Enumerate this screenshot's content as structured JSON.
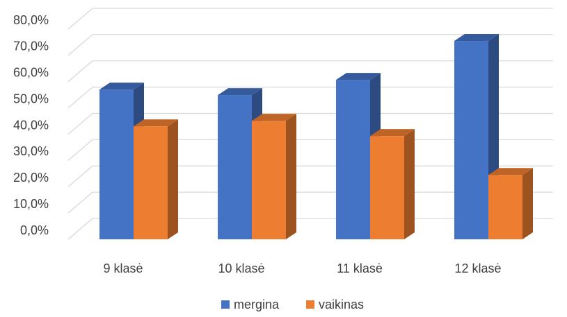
{
  "chart_data": {
    "type": "bar",
    "style": "3d-clustered-column",
    "categories": [
      "9 klasė",
      "10 klasė",
      "11 klasė",
      "12 klasė"
    ],
    "series": [
      {
        "name": "mergina",
        "values": [
          57.0,
          54.9,
          60.7,
          75.5
        ],
        "color": "#4472C4"
      },
      {
        "name": "vaikinas",
        "values": [
          43.0,
          45.1,
          39.3,
          24.5
        ],
        "color": "#ED7D31"
      }
    ],
    "y_ticks": [
      "0,0%",
      "10,0%",
      "20,0%",
      "30,0%",
      "40,0%",
      "50,0%",
      "60,0%",
      "70,0%",
      "80,0%"
    ],
    "ylim": [
      0,
      80
    ],
    "grid": true,
    "legend_position": "bottom"
  }
}
